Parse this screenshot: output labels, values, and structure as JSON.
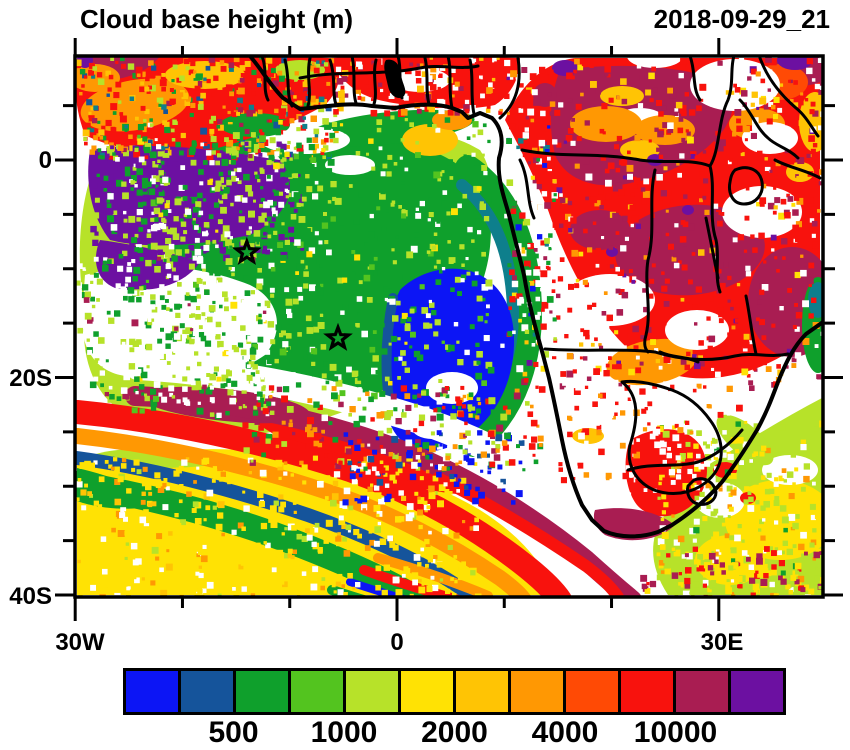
{
  "chart_data": {
    "type": "heatmap",
    "title": "Cloud base height (m)",
    "timestamp": "2018-09-29_21",
    "variable": "cloud base height",
    "units": "m",
    "x_axis": {
      "tick_labels": [
        "30W",
        "0",
        "30E"
      ],
      "minor_tick_interval_deg": 10,
      "lon_range": [
        -30,
        39.7
      ]
    },
    "y_axis": {
      "tick_labels": [
        "0",
        "20S",
        "40S"
      ],
      "minor_tick_interval_deg": 5,
      "lat_range": [
        -40.3,
        9.6
      ]
    },
    "colorbar": {
      "orientation": "horizontal",
      "tick_labels": [
        "500",
        "1000",
        "2000",
        "4000",
        "10000"
      ],
      "colors": [
        "#0C15F5",
        "#15549B",
        "#0FA02C",
        "#53C41F",
        "#B7E229",
        "#FFE204",
        "#FFC404",
        "#FF9803",
        "#FF4A05",
        "#F8120D",
        "#A91D52",
        "#6C10A1"
      ]
    },
    "markers": [
      {
        "type": "star",
        "lon": -14.0,
        "lat": -8.5
      },
      {
        "type": "star",
        "lon": -5.5,
        "lat": -16.4
      }
    ],
    "field_summary": [
      "low cloud bases (blue, <500 m) in marine stratocumulus core near 0-10E, 12-25S",
      "green/chartreuse field over SE Atlantic west of the blue core",
      "purple patch (very high bases) near 25-15W, 3-10S",
      "red and dark-crimson (4000-10000+ m) over central and eastern Africa",
      "yellow field (~1500-2000 m) over the far south-west Atlantic",
      "diagonal frontal bands (maroon/red/orange/blue/green) trending NW-SE near 30-40S"
    ]
  },
  "map_accent_colors": {
    "teal": "#0E7F8C",
    "coastline": "#000000",
    "background": "#FFFFFF"
  }
}
